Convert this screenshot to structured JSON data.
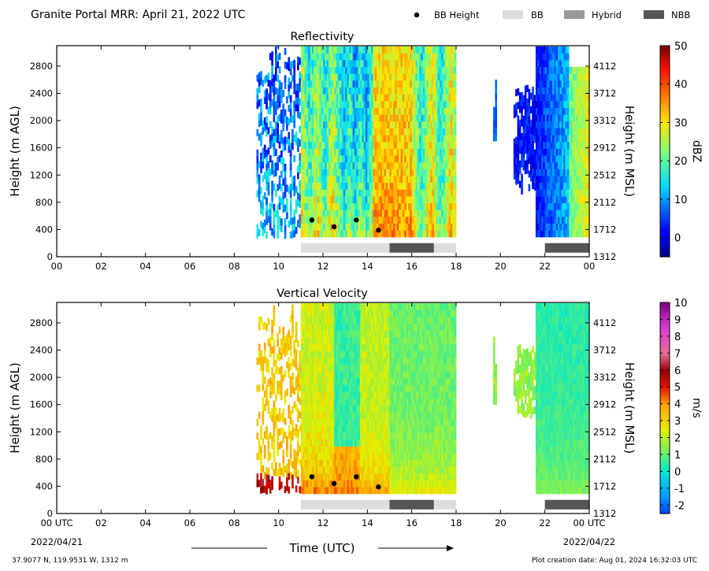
{
  "header": {
    "title": "Granite Portal MRR:  April 21, 2022 UTC",
    "legend": [
      {
        "label": "BB Height",
        "symbol": "dot",
        "color": "#000000"
      },
      {
        "label": "BB",
        "symbol": "box",
        "color": "#dddddd"
      },
      {
        "label": "Hybrid",
        "symbol": "box",
        "color": "#999999"
      },
      {
        "label": "NBB",
        "symbol": "box",
        "color": "#555555"
      }
    ]
  },
  "footer": {
    "location": "37.9077 N, 119.9531 W, 1312 m",
    "creation": "Plot creation date: Aug 01, 2024 16:32:03 UTC",
    "xlabel": "Time (UTC)",
    "start_date": "2022/04/21",
    "end_date": "2022/04/22"
  },
  "chart_data": [
    {
      "type": "heatmap",
      "title": "Reflectivity",
      "ylabel": "Height (m AGL)",
      "ylabel_right": "Height (m MSL)",
      "colorbar_label": "dBZ",
      "colorbar_ticks": [
        "50",
        "40",
        "30",
        "20",
        "10",
        "0"
      ],
      "colorbar_range": [
        -5,
        50
      ],
      "colormap": "jet",
      "xlim_hours": [
        0,
        24
      ],
      "ylim": [
        0,
        3100
      ],
      "x_ticks": [
        "00",
        "02",
        "04",
        "06",
        "08",
        "10",
        "12",
        "14",
        "16",
        "18",
        "20",
        "22",
        "00"
      ],
      "y_ticks": [
        "0",
        "400",
        "800",
        "1200",
        "1600",
        "2000",
        "2400",
        "2800"
      ],
      "y_ticks_right": [
        "1312",
        "1712",
        "2112",
        "2512",
        "2912",
        "3312",
        "3712",
        "4112"
      ],
      "bb_height": [
        {
          "hour": 11.5,
          "height": 540
        },
        {
          "hour": 12.5,
          "height": 440
        },
        {
          "hour": 13.5,
          "height": 540
        },
        {
          "hour": 14.5,
          "height": 390
        }
      ],
      "rain_type_bar": [
        {
          "type": "BB",
          "start": 11.0,
          "end": 15.0
        },
        {
          "type": "NBB",
          "start": 15.0,
          "end": 17.0
        },
        {
          "type": "BB",
          "start": 17.0,
          "end": 18.0
        },
        {
          "type": "NBB",
          "start": 22.0,
          "end": 24.0
        }
      ]
    },
    {
      "type": "heatmap",
      "title": "Vertical Velocity",
      "ylabel": "Height (m AGL)",
      "ylabel_right": "Height (m MSL)",
      "colorbar_label": "m/s",
      "colorbar_ticks": [
        "10",
        "9",
        "8",
        "7",
        "6",
        "5",
        "4",
        "3",
        "2",
        "1",
        "0",
        "-1",
        "-2"
      ],
      "colorbar_range": [
        -2.5,
        10
      ],
      "colormap": "velocity",
      "xlim_hours": [
        0,
        24
      ],
      "ylim": [
        0,
        3100
      ],
      "x_ticks": [
        "00 UTC",
        "02",
        "04",
        "06",
        "08",
        "10",
        "12",
        "14",
        "16",
        "18",
        "20",
        "22",
        "00 UTC"
      ],
      "y_ticks": [
        "0",
        "400",
        "800",
        "1200",
        "1600",
        "2000",
        "2400",
        "2800"
      ],
      "y_ticks_right": [
        "1312",
        "1712",
        "2112",
        "2512",
        "2912",
        "3312",
        "3712",
        "4112"
      ],
      "bb_height": [
        {
          "hour": 11.5,
          "height": 540
        },
        {
          "hour": 12.5,
          "height": 440
        },
        {
          "hour": 13.5,
          "height": 540
        },
        {
          "hour": 14.5,
          "height": 390
        }
      ],
      "rain_type_bar": [
        {
          "type": "BB",
          "start": 11.0,
          "end": 15.0
        },
        {
          "type": "NBB",
          "start": 15.0,
          "end": 17.0
        },
        {
          "type": "BB",
          "start": 17.0,
          "end": 18.0
        },
        {
          "type": "NBB",
          "start": 22.0,
          "end": 24.0
        }
      ]
    }
  ]
}
